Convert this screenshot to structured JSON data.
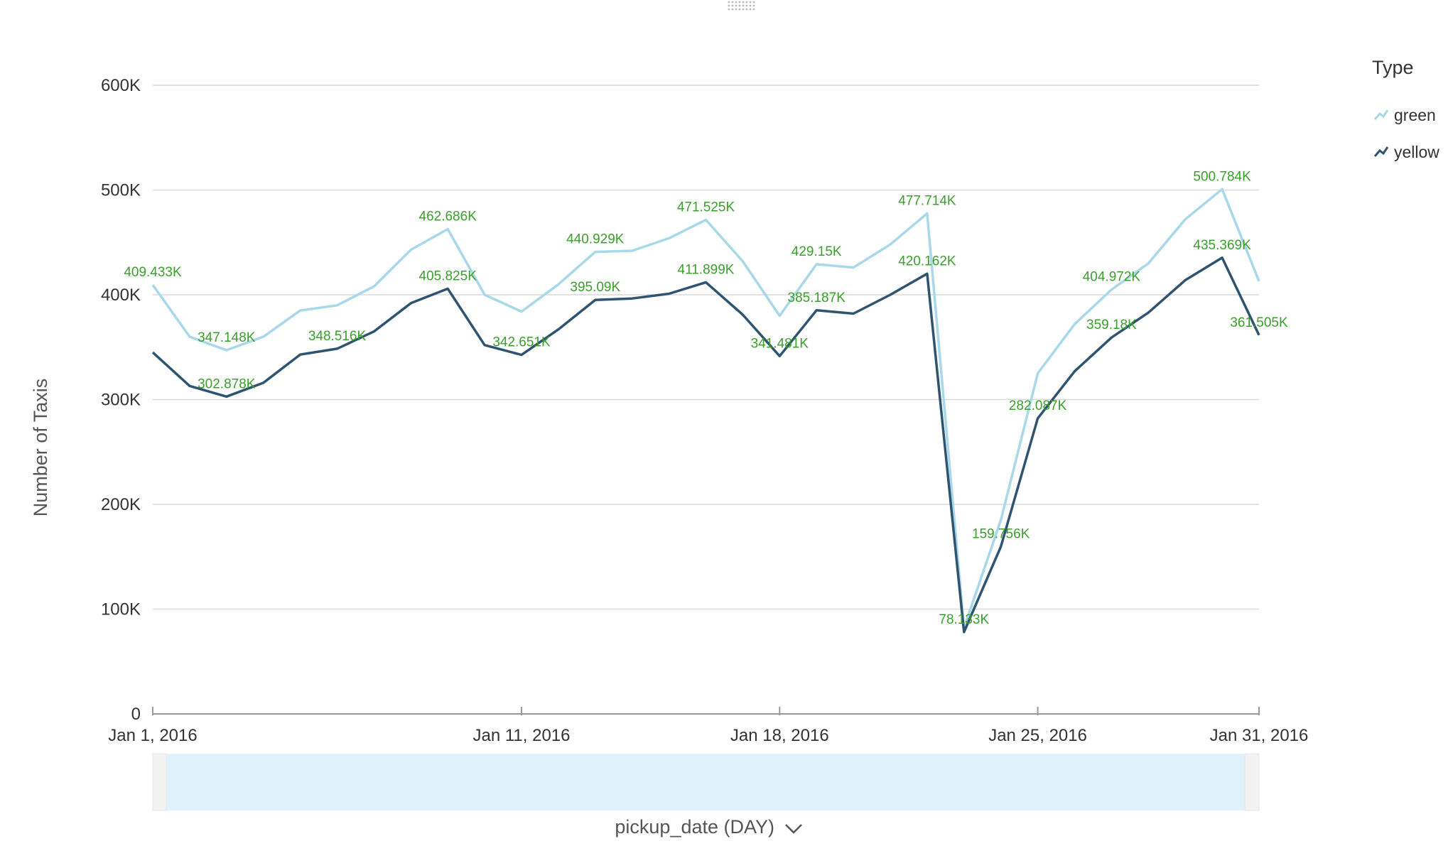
{
  "chart_data": {
    "type": "line",
    "x": [
      "2016-01-01",
      "2016-01-02",
      "2016-01-03",
      "2016-01-04",
      "2016-01-05",
      "2016-01-06",
      "2016-01-07",
      "2016-01-08",
      "2016-01-09",
      "2016-01-10",
      "2016-01-11",
      "2016-01-12",
      "2016-01-13",
      "2016-01-14",
      "2016-01-15",
      "2016-01-16",
      "2016-01-17",
      "2016-01-18",
      "2016-01-19",
      "2016-01-20",
      "2016-01-21",
      "2016-01-22",
      "2016-01-23",
      "2016-01-24",
      "2016-01-25",
      "2016-01-26",
      "2016-01-27",
      "2016-01-28",
      "2016-01-29",
      "2016-01-30",
      "2016-01-31"
    ],
    "series": [
      {
        "name": "green",
        "color": "#a8d8ea",
        "values": [
          409433,
          360000,
          347148,
          360000,
          385000,
          390000,
          408000,
          443000,
          462686,
          400000,
          384000,
          410000,
          440929,
          442000,
          454000,
          471525,
          432000,
          380000,
          429150,
          426000,
          448000,
          477714,
          82000,
          185000,
          325000,
          372000,
          404972,
          430000,
          472000,
          500784,
          413000
        ]
      },
      {
        "name": "yellow",
        "color": "#2e5470",
        "values": [
          345000,
          313000,
          302878,
          316000,
          343000,
          348516,
          365000,
          392000,
          405825,
          352000,
          342651,
          367000,
          395090,
          396500,
          401000,
          411899,
          381000,
          341481,
          385187,
          382000,
          400000,
          420162,
          78133,
          159756,
          282087,
          327000,
          359180,
          383000,
          414000,
          435369,
          361505
        ]
      }
    ],
    "data_labels": [
      {
        "x": "2016-01-01",
        "y": 409433,
        "text": "409.433K"
      },
      {
        "x": "2016-01-03",
        "y": 347148,
        "text": "347.148K"
      },
      {
        "x": "2016-01-03",
        "y": 302878,
        "text": "302.878K"
      },
      {
        "x": "2016-01-06",
        "y": 348516,
        "text": "348.516K"
      },
      {
        "x": "2016-01-09",
        "y": 462686,
        "text": "462.686K"
      },
      {
        "x": "2016-01-09",
        "y": 405825,
        "text": "405.825K"
      },
      {
        "x": "2016-01-11",
        "y": 342651,
        "text": "342.651K"
      },
      {
        "x": "2016-01-13",
        "y": 440929,
        "text": "440.929K"
      },
      {
        "x": "2016-01-13",
        "y": 395090,
        "text": "395.09K"
      },
      {
        "x": "2016-01-16",
        "y": 471525,
        "text": "471.525K"
      },
      {
        "x": "2016-01-16",
        "y": 411899,
        "text": "411.899K"
      },
      {
        "x": "2016-01-19",
        "y": 429150,
        "text": "429.15K"
      },
      {
        "x": "2016-01-19",
        "y": 385187,
        "text": "385.187K"
      },
      {
        "x": "2016-01-18",
        "y": 341481,
        "text": "341.481K"
      },
      {
        "x": "2016-01-22",
        "y": 477714,
        "text": "477.714K"
      },
      {
        "x": "2016-01-22",
        "y": 420162,
        "text": "420.162K"
      },
      {
        "x": "2016-01-24",
        "y": 159756,
        "text": "159.756K"
      },
      {
        "x": "2016-01-23",
        "y": 78133,
        "text": "78.133K"
      },
      {
        "x": "2016-01-25",
        "y": 282087,
        "text": "282.087K"
      },
      {
        "x": "2016-01-27",
        "y": 404972,
        "text": "404.972K"
      },
      {
        "x": "2016-01-27",
        "y": 359180,
        "text": "359.18K"
      },
      {
        "x": "2016-01-30",
        "y": 500784,
        "text": "500.784K"
      },
      {
        "x": "2016-01-30",
        "y": 435369,
        "text": "435.369K"
      },
      {
        "x": "2016-01-31",
        "y": 361505,
        "text": "361.505K"
      }
    ],
    "ylabel": "Number of Taxis",
    "xlabel": "pickup_date (DAY)",
    "ylim": [
      0,
      600000
    ],
    "y_ticks": [
      {
        "value": 0,
        "label": "0"
      },
      {
        "value": 100000,
        "label": "100K"
      },
      {
        "value": 200000,
        "label": "200K"
      },
      {
        "value": 300000,
        "label": "300K"
      },
      {
        "value": 400000,
        "label": "400K"
      },
      {
        "value": 500000,
        "label": "500K"
      },
      {
        "value": 600000,
        "label": "600K"
      }
    ],
    "x_ticks": [
      {
        "x": "2016-01-01",
        "label": "Jan 1, 2016"
      },
      {
        "x": "2016-01-11",
        "label": "Jan 11, 2016"
      },
      {
        "x": "2016-01-18",
        "label": "Jan 18, 2016"
      },
      {
        "x": "2016-01-25",
        "label": "Jan 25, 2016"
      },
      {
        "x": "2016-01-31",
        "label": "Jan 31, 2016"
      }
    ],
    "grid": true,
    "legend": {
      "title": "Type",
      "position": "top-right"
    },
    "label_color": "#3aa02c"
  },
  "controls": {
    "x_axis_dropdown_icon": "chevron-down-icon",
    "drag_handle_icon": "drag-handle-icon",
    "range_slider_selected": [
      0,
      1
    ]
  }
}
